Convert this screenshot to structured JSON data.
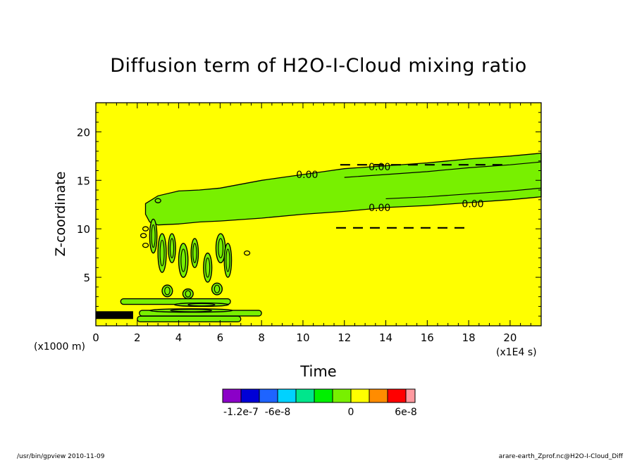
{
  "chart_data": {
    "type": "heatmap",
    "title": "Diffusion term of H2O-I-Cloud mixing ratio",
    "xlabel": "Time",
    "ylabel": "Z-coordinate",
    "x_units": "(x1E4 s)",
    "y_units": "(x1000 m)",
    "xlim": [
      0,
      21.5
    ],
    "ylim": [
      0,
      23
    ],
    "x_ticks": [
      0,
      2,
      4,
      6,
      8,
      10,
      12,
      14,
      16,
      18,
      20
    ],
    "y_ticks": [
      5,
      10,
      15,
      20
    ],
    "background_value": 0,
    "contour_labels": [
      {
        "text": "0.00",
        "x": 10.2,
        "y": 15.6
      },
      {
        "text": "0.00",
        "x": 13.7,
        "y": 16.4
      },
      {
        "text": "0.00",
        "x": 13.7,
        "y": 12.2
      },
      {
        "text": "0.00",
        "x": 18.2,
        "y": 12.6
      }
    ],
    "negative_region_band": {
      "upper": [
        [
          2.4,
          12.6
        ],
        [
          3,
          13.4
        ],
        [
          4,
          13.9
        ],
        [
          5,
          14
        ],
        [
          6,
          14.2
        ],
        [
          7,
          14.6
        ],
        [
          8,
          15
        ],
        [
          9,
          15.3
        ],
        [
          10,
          15.6
        ],
        [
          11,
          15.9
        ],
        [
          12,
          16.2
        ],
        [
          14,
          16.5
        ],
        [
          16,
          16.8
        ],
        [
          18,
          17.2
        ],
        [
          20,
          17.5
        ],
        [
          21.5,
          17.8
        ]
      ],
      "lower": [
        [
          21.5,
          13.3
        ],
        [
          20,
          13
        ],
        [
          18,
          12.7
        ],
        [
          16,
          12.4
        ],
        [
          14,
          12.2
        ],
        [
          12,
          11.8
        ],
        [
          10,
          11.5
        ],
        [
          8,
          11.1
        ],
        [
          6,
          10.8
        ],
        [
          5,
          10.7
        ],
        [
          4,
          10.5
        ],
        [
          3,
          10.4
        ],
        [
          2.6,
          10.7
        ],
        [
          2.4,
          11.5
        ]
      ]
    },
    "convective_blobs": [
      {
        "x": 2.6,
        "y": 7.5,
        "w": 0.35,
        "h": 3.5
      },
      {
        "x": 3.0,
        "y": 5.5,
        "w": 0.4,
        "h": 4.0
      },
      {
        "x": 3.5,
        "y": 6.5,
        "w": 0.35,
        "h": 3.0
      },
      {
        "x": 4.0,
        "y": 5.0,
        "w": 0.45,
        "h": 3.5
      },
      {
        "x": 4.6,
        "y": 6.0,
        "w": 0.35,
        "h": 3.0
      },
      {
        "x": 5.2,
        "y": 4.5,
        "w": 0.4,
        "h": 3.0
      },
      {
        "x": 5.8,
        "y": 6.5,
        "w": 0.45,
        "h": 3.0
      },
      {
        "x": 6.2,
        "y": 5.0,
        "w": 0.35,
        "h": 3.5
      },
      {
        "x": 3.2,
        "y": 3.0,
        "w": 0.5,
        "h": 1.2
      },
      {
        "x": 4.2,
        "y": 2.8,
        "w": 0.5,
        "h": 1.0
      },
      {
        "x": 5.6,
        "y": 3.2,
        "w": 0.5,
        "h": 1.2
      },
      {
        "x": 3.8,
        "y": 2.0,
        "w": 2.6,
        "h": 0.35
      },
      {
        "x": 2.6,
        "y": 1.4,
        "w": 4.0,
        "h": 0.35
      }
    ],
    "low_bands": [
      {
        "x0": 1.2,
        "x1": 6.5,
        "y": 2.5
      },
      {
        "x0": 2.1,
        "x1": 8.0,
        "y": 1.3
      },
      {
        "x0": 2.0,
        "x1": 7.0,
        "y": 0.7
      }
    ],
    "dashed_contours": [
      {
        "x0": 11.6,
        "x1": 18.0,
        "y": 10.1
      },
      {
        "x0": 11.8,
        "x1": 19.8,
        "y": 16.6
      }
    ],
    "colorbar": {
      "colors": [
        "#8b00c8",
        "#0000d6",
        "#1e64ff",
        "#00d2ff",
        "#00e68c",
        "#00f000",
        "#78f000",
        "#ffff00",
        "#ff8c00",
        "#ff0000",
        "#ff9aa0"
      ],
      "labels": [
        "-1.2e-7",
        "-6e-8",
        "0",
        "6e-8"
      ]
    }
  },
  "footer": {
    "left": "/usr/bin/gpview   2010-11-09",
    "right": "arare-earth_Zprof.nc@H2O-I-Cloud_Diff"
  }
}
